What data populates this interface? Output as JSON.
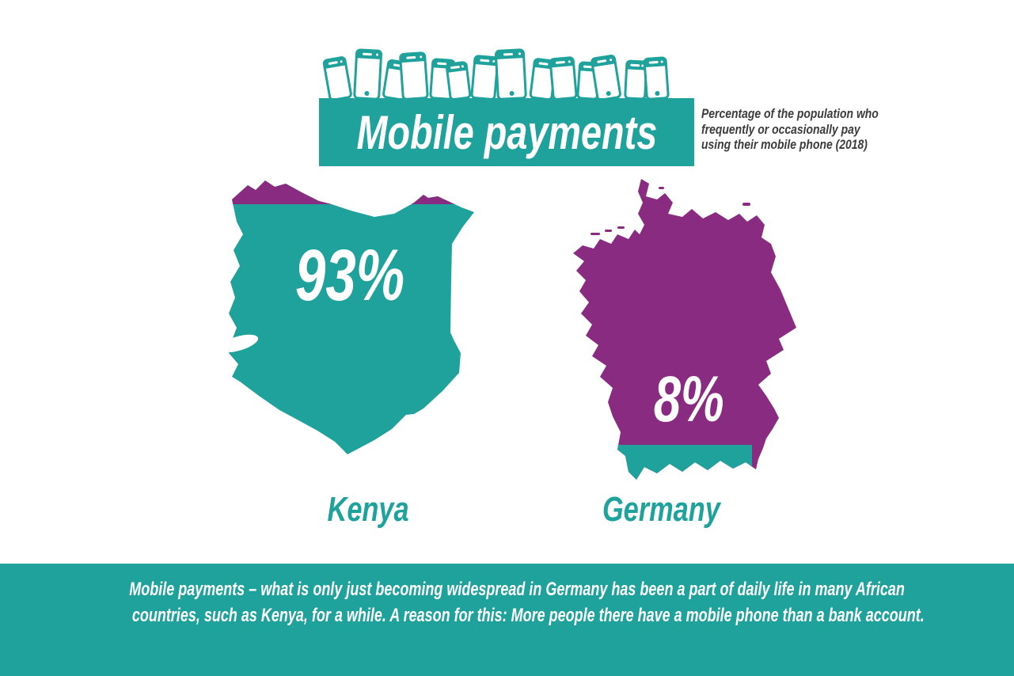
{
  "colors": {
    "teal": "#1FA29B",
    "purple": "#8A2B82",
    "ink": "#3C3C3C",
    "paper": "#FFFFFF"
  },
  "header": {
    "title": "Mobile payments",
    "note_lines": [
      "Percentage of the population who",
      "frequently or occasionally pay",
      "using their mobile phone (2018)"
    ]
  },
  "maps": {
    "kenya": {
      "label": "Kenya",
      "value_label": "93%",
      "fill": "#1FA29B",
      "stripe": "#8A2B82"
    },
    "germany": {
      "label": "Germany",
      "value_label": "8%",
      "fill": "#8A2B82",
      "stripe": "#1FA29B"
    }
  },
  "footer": {
    "lines": [
      "Mobile payments – what is only just becoming widespread in Germany has been a part of daily life in many African",
      "countries, such as Kenya, for a while. A reason for this: More people there have a mobile phone than a bank account."
    ]
  },
  "icons": {
    "phones_row": "smartphone-outline-icon"
  },
  "chart_data": {
    "type": "pictorial",
    "variant": "country-map-fill-comparison",
    "title": "Mobile payments",
    "subtitle": "Percentage of the population who frequently or occasionally pay using their mobile phone (2018)",
    "year": 2018,
    "categories": [
      "Kenya",
      "Germany"
    ],
    "values": [
      93,
      8
    ],
    "unit": "%",
    "value_labels": [
      "93%",
      "8%"
    ],
    "color_map": {
      "Kenya": "#1FA29B",
      "Germany": "#8A2B82"
    },
    "annotation": "Mobile payments – what is only just becoming widespread in Germany has been a part of daily life in many African countries, such as Kenya, for a while. A reason for this: More people there have a mobile phone than a bank account.",
    "legend_position": "none",
    "grid": false
  }
}
